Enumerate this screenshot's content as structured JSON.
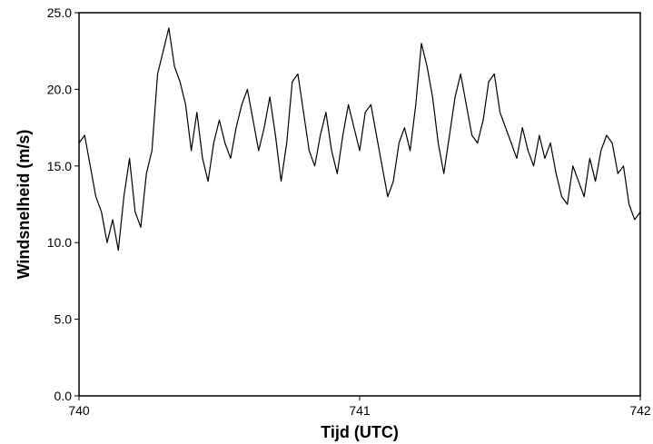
{
  "chart_data": {
    "type": "line",
    "title": "",
    "xlabel": "Tijd (UTC)",
    "ylabel": "Windsnelheid (m/s)",
    "xlim": [
      740,
      742
    ],
    "ylim": [
      0,
      25
    ],
    "x_ticks": [
      740,
      741,
      742
    ],
    "x_tick_labels": [
      "740",
      "741",
      "742"
    ],
    "y_ticks": [
      0,
      5,
      10,
      15,
      20,
      25
    ],
    "y_tick_labels": [
      "0.0",
      "5.0",
      "10.0",
      "15.0",
      "20.0",
      "25.0"
    ],
    "grid": false,
    "legend": "none",
    "series": [
      {
        "color": "#000000",
        "x": [
          740.0,
          740.02,
          740.04,
          740.06,
          740.08,
          740.1,
          740.12,
          740.14,
          740.16,
          740.18,
          740.2,
          740.22,
          740.24,
          740.26,
          740.28,
          740.3,
          740.32,
          740.34,
          740.36,
          740.38,
          740.4,
          740.42,
          740.44,
          740.46,
          740.48,
          740.5,
          740.52,
          740.54,
          740.56,
          740.58,
          740.6,
          740.62,
          740.64,
          740.66,
          740.68,
          740.7,
          740.72,
          740.74,
          740.76,
          740.78,
          740.8,
          740.82,
          740.84,
          740.86,
          740.88,
          740.9,
          740.92,
          740.94,
          740.96,
          740.98,
          741.0,
          741.02,
          741.04,
          741.06,
          741.08,
          741.1,
          741.12,
          741.14,
          741.16,
          741.18,
          741.2,
          741.22,
          741.24,
          741.26,
          741.28,
          741.3,
          741.32,
          741.34,
          741.36,
          741.38,
          741.4,
          741.42,
          741.44,
          741.46,
          741.48,
          741.5,
          741.52,
          741.54,
          741.56,
          741.58,
          741.6,
          741.62,
          741.64,
          741.66,
          741.68,
          741.7,
          741.72,
          741.74,
          741.76,
          741.78,
          741.8,
          741.82,
          741.84,
          741.86,
          741.88,
          741.9,
          741.92,
          741.94,
          741.96,
          741.98,
          742.0
        ],
        "y": [
          16.5,
          17.0,
          15.0,
          13.0,
          12.0,
          10.0,
          11.5,
          9.5,
          13.0,
          15.5,
          12.0,
          11.0,
          14.5,
          16.0,
          21.0,
          22.5,
          24.0,
          21.5,
          20.5,
          19.0,
          16.0,
          18.5,
          15.5,
          14.0,
          16.5,
          18.0,
          16.5,
          15.5,
          17.5,
          19.0,
          20.0,
          18.0,
          16.0,
          17.5,
          19.5,
          17.0,
          14.0,
          16.5,
          20.5,
          21.0,
          18.5,
          16.0,
          15.0,
          17.0,
          18.5,
          16.0,
          14.5,
          17.0,
          19.0,
          17.5,
          16.0,
          18.5,
          19.0,
          17.0,
          15.0,
          13.0,
          14.0,
          16.5,
          17.5,
          16.0,
          19.0,
          23.0,
          21.5,
          19.5,
          16.5,
          14.5,
          17.0,
          19.5,
          21.0,
          19.0,
          17.0,
          16.5,
          18.0,
          20.5,
          21.0,
          18.5,
          17.5,
          16.5,
          15.5,
          17.5,
          16.0,
          15.0,
          17.0,
          15.5,
          16.5,
          14.5,
          13.0,
          12.5,
          15.0,
          14.0,
          13.0,
          15.5,
          14.0,
          16.0,
          17.0,
          16.5,
          14.5,
          15.0,
          12.5,
          11.5,
          12.0
        ]
      }
    ]
  }
}
